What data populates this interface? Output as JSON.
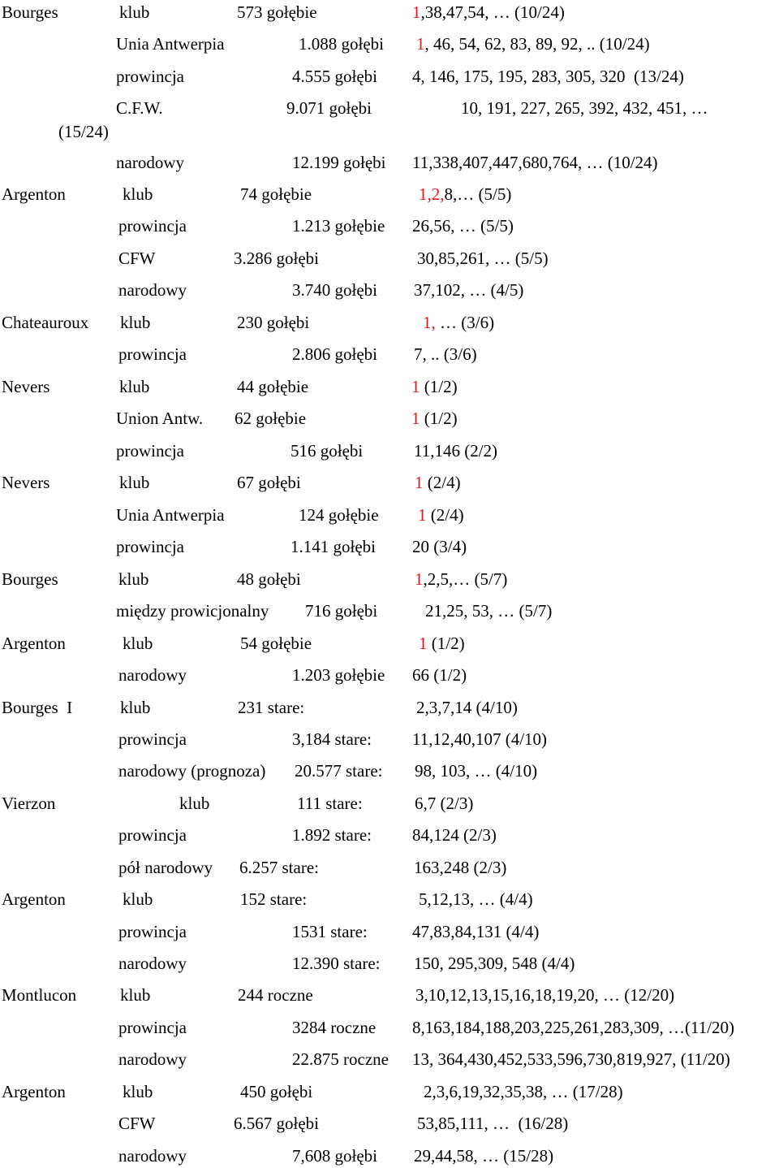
{
  "accent_color": "#e8141c",
  "rows": [
    {
      "city": "Bourges",
      "level": "klub",
      "count": "573 gołębie",
      "red": "1",
      "rest": ",38,47,54, … (10/24)"
    },
    {
      "city": "",
      "level": "Unia Antwerpia",
      "count": "1.088 gołębi",
      "red": "1",
      "rest": ", 46, 54, 62, 83, 89, 92, .. (10/24)"
    },
    {
      "city": "",
      "level": "prowincja",
      "count": "4.555 gołębi",
      "red": "",
      "rest": "4, 146, 175, 195, 283, 305, 320  (13/24)"
    },
    {
      "city": "",
      "level": "C.F.W.",
      "count": "9.071 gołębi",
      "red": "",
      "rest": "10, 191, 227, 265, 392, 432, 451, …"
    },
    {
      "city": "(15/24)",
      "level": "",
      "count": "",
      "red": "",
      "rest": ""
    },
    {
      "city": "",
      "level": "narodowy",
      "count": "12.199 gołębi",
      "red": "",
      "rest": "11,338,407,447,680,764, … (10/24)"
    },
    {
      "city": "Argenton",
      "level": "klub",
      "count": "74 gołębie",
      "red": "1,2,",
      "rest": "8,… (5/5)"
    },
    {
      "city": "",
      "level": "prowincja",
      "count": "1.213 gołębie",
      "red": "",
      "rest": "26,56, … (5/5)"
    },
    {
      "city": "",
      "level": "CFW",
      "count": "3.286 gołębi",
      "red": "",
      "rest": "30,85,261, … (5/5)"
    },
    {
      "city": "",
      "level": "narodowy",
      "count": "3.740 gołębi",
      "red": "",
      "rest": "37,102, … (4/5)"
    },
    {
      "city": "Chateauroux",
      "level": "klub",
      "count": "230 gołębi",
      "red": "1,",
      "rest": " … (3/6)"
    },
    {
      "city": "",
      "level": "prowincja",
      "count": "2.806 gołębi",
      "red": "",
      "rest": "7, .. (3/6)"
    },
    {
      "city": "Nevers",
      "level": "klub",
      "count": "44 gołębie",
      "red": "1",
      "rest": " (1/2)"
    },
    {
      "city": "",
      "level": "Union Antw.",
      "count": "62 gołębie",
      "red": "1",
      "rest": " (1/2)"
    },
    {
      "city": "",
      "level": "prowincja",
      "count": "516 gołębi",
      "red": "",
      "rest": "11,146 (2/2)"
    },
    {
      "city": "Nevers",
      "level": "klub",
      "count": "67 gołębi",
      "red": "1",
      "rest": " (2/4)"
    },
    {
      "city": "",
      "level": "Unia Antwerpia",
      "count": "124 gołębie",
      "red": "1",
      "rest": " (2/4)"
    },
    {
      "city": "",
      "level": "prowincja",
      "count": "1.141 gołębi",
      "red": "",
      "rest": "20 (3/4)"
    },
    {
      "city": "Bourges",
      "level": "klub",
      "count": "48 gołębi",
      "red": "1",
      "rest": ",2,5,… (5/7)"
    },
    {
      "city": "",
      "level": "między prowicjonalny",
      "count": "716 gołębi",
      "red": "",
      "rest": "21,25, 53, … (5/7)"
    },
    {
      "city": "Argenton",
      "level": "klub",
      "count": "54 gołębie",
      "red": "1",
      "rest": " (1/2)"
    },
    {
      "city": "",
      "level": "narodowy",
      "count": "1.203 gołębie",
      "red": "",
      "rest": "66 (1/2)"
    },
    {
      "city": "Bourges  I",
      "level": "klub",
      "count": "231 stare:",
      "red": "",
      "rest": "2,3,7,14 (4/10)"
    },
    {
      "city": "",
      "level": "prowincja",
      "count": "3,184 stare:",
      "red": "",
      "rest": "11,12,40,107 (4/10)"
    },
    {
      "city": "",
      "level": "narodowy (prognoza)",
      "count": "20.577 stare:",
      "red": "",
      "rest": "98, 103, … (4/10)"
    },
    {
      "city": "Vierzon",
      "level": "klub",
      "count": "111 stare:",
      "red": "",
      "rest": "6,7 (2/3)"
    },
    {
      "city": "",
      "level": "prowincja",
      "count": "1.892 stare:",
      "red": "",
      "rest": "84,124 (2/3)"
    },
    {
      "city": "",
      "level": "pół narodowy",
      "count": "6.257 stare:",
      "red": "",
      "rest": "163,248 (2/3)"
    },
    {
      "city": "Argenton",
      "level": "klub",
      "count": "152 stare:",
      "red": "",
      "rest": "5,12,13, … (4/4)"
    },
    {
      "city": "",
      "level": "prowincja",
      "count": "1531 stare:",
      "red": "",
      "rest": "47,83,84,131 (4/4)"
    },
    {
      "city": "",
      "level": "narodowy",
      "count": "12.390 stare:",
      "red": "",
      "rest": "150, 295,309, 548 (4/4)"
    },
    {
      "city": "Montlucon",
      "level": "klub",
      "count": "244 roczne",
      "red": "",
      "rest": "3,10,12,13,15,16,18,19,20, … (12/20)"
    },
    {
      "city": "",
      "level": "prowincja",
      "count": "3284 roczne",
      "red": "",
      "rest": "8,163,184,188,203,225,261,283,309, …(11/20)"
    },
    {
      "city": "",
      "level": "narodowy",
      "count": "22.875 roczne",
      "red": "",
      "rest": "13, 364,430,452,533,596,730,819,927, (11/20)"
    },
    {
      "city": "Argenton",
      "level": "klub",
      "count": "450 gołębi",
      "red": "",
      "rest": "2,3,6,19,32,35,38, … (17/28)"
    },
    {
      "city": "",
      "level": "CFW",
      "count": "6.567 gołębi",
      "red": "",
      "rest": "53,85,111, …  (16/28)"
    },
    {
      "city": "",
      "level": "narodowy",
      "count": "7,608 gołębi",
      "red": "",
      "rest": "29,44,58, … (15/28)"
    }
  ]
}
